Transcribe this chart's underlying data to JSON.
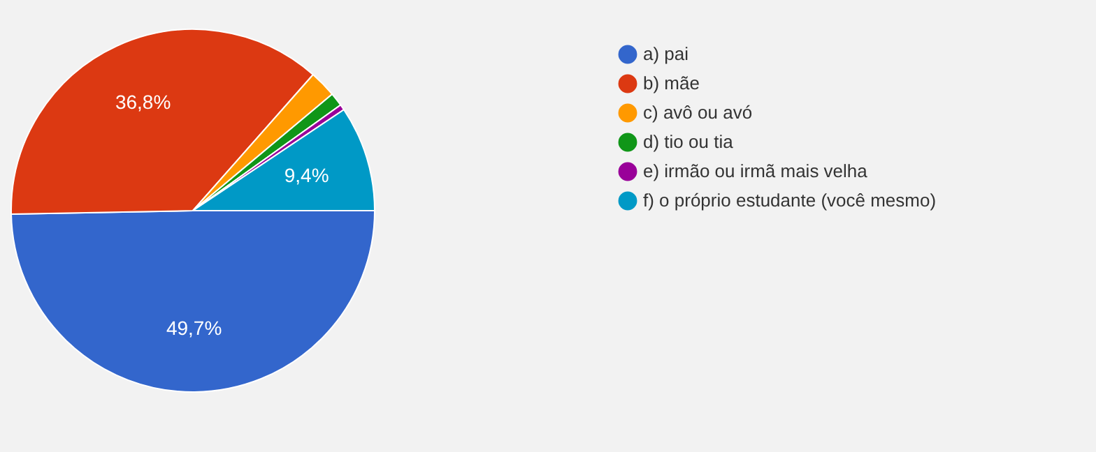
{
  "chart_data": {
    "type": "pie",
    "categories": [
      "a) pai",
      "b) mãe",
      "c) avô ou avó",
      "d) tio ou tia",
      "e) irmão ou irmã mais velha",
      "f) o próprio estudante (você mesmo)"
    ],
    "values": [
      49.7,
      36.8,
      2.4,
      1.2,
      0.5,
      9.4
    ],
    "colors": [
      "#3366cc",
      "#dc3912",
      "#ff9900",
      "#109618",
      "#990099",
      "#0099c6"
    ],
    "value_labels": [
      "49,7%",
      "36,8%",
      null,
      null,
      null,
      "9,4%"
    ],
    "legend": "right"
  }
}
